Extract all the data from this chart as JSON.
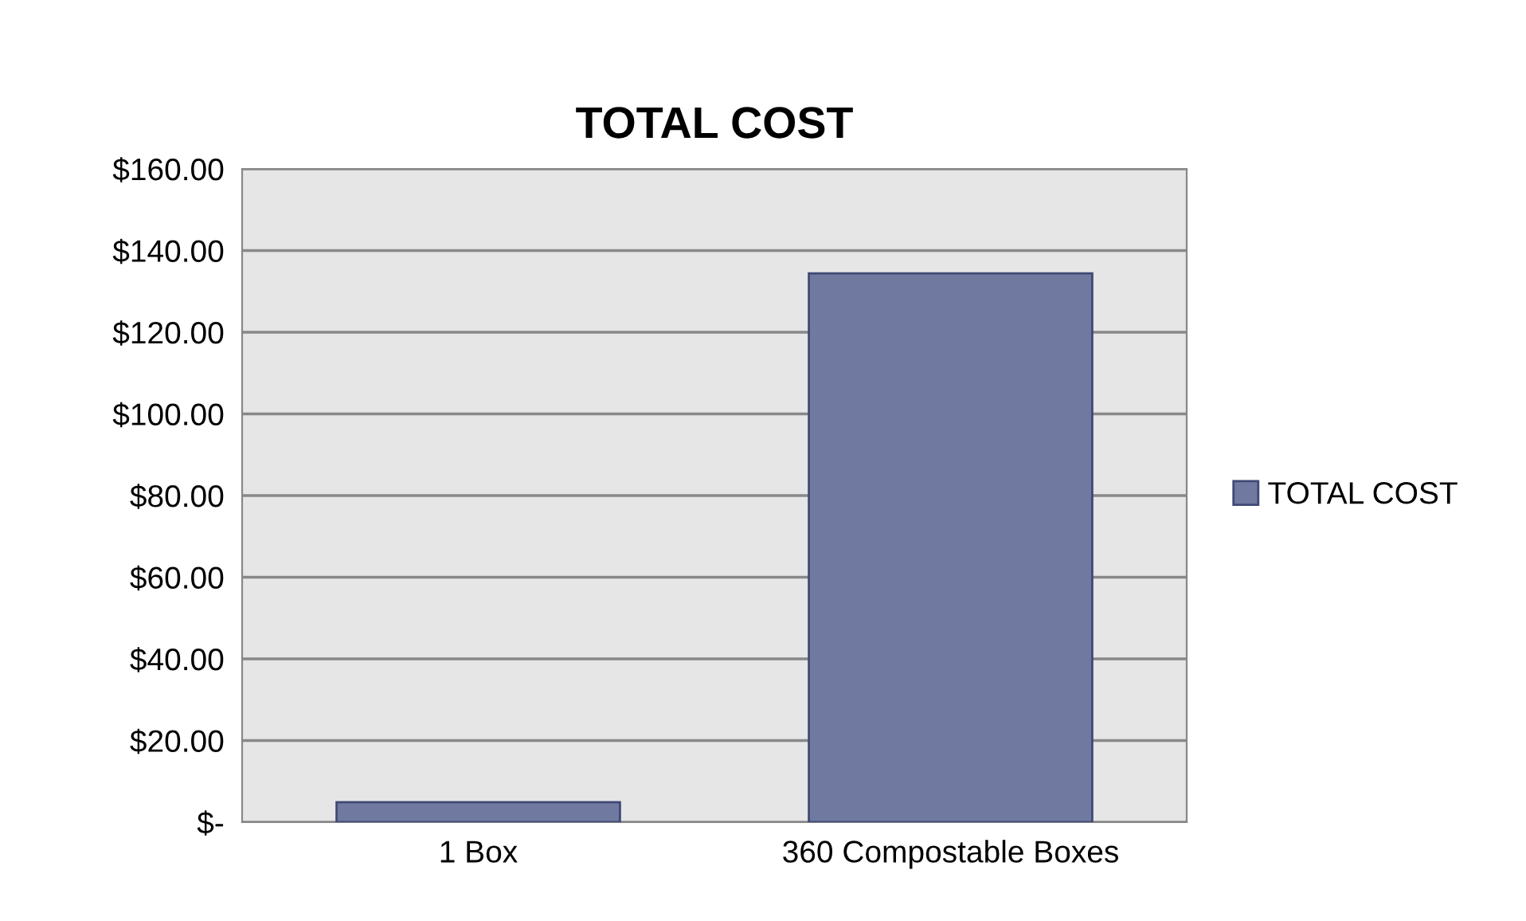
{
  "chart_data": {
    "type": "bar",
    "title": "TOTAL COST",
    "categories": [
      "1 Box",
      "360 Compostable Boxes"
    ],
    "series": [
      {
        "name": "TOTAL COST",
        "color": "#7079a0",
        "values": [
          4.9,
          134.4
        ]
      }
    ],
    "ylim": [
      0,
      160
    ],
    "yticks": [
      {
        "value": 0,
        "label": "$-"
      },
      {
        "value": 20,
        "label": "$20.00"
      },
      {
        "value": 40,
        "label": "$40.00"
      },
      {
        "value": 60,
        "label": "$60.00"
      },
      {
        "value": 80,
        "label": "$80.00"
      },
      {
        "value": 100,
        "label": "$100.00"
      },
      {
        "value": 120,
        "label": "$120.00"
      },
      {
        "value": 140,
        "label": "$140.00"
      },
      {
        "value": 160,
        "label": "$160.00"
      }
    ],
    "grid": "y",
    "legend": "right"
  }
}
